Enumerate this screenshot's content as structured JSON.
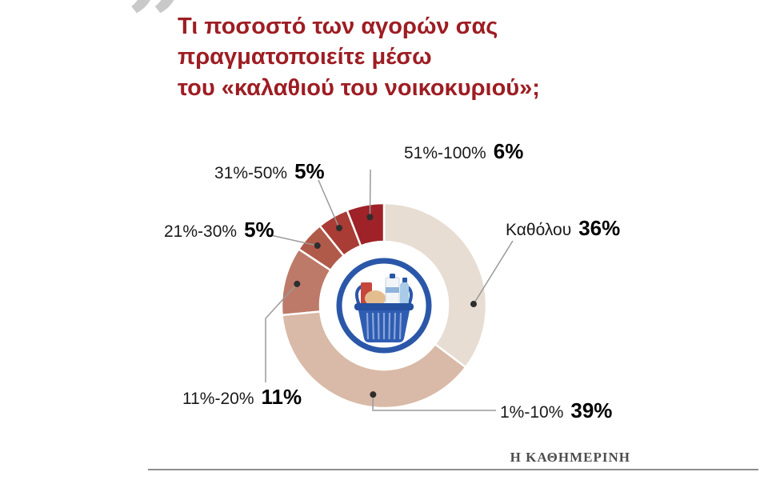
{
  "header": {
    "quote_glyph": "”",
    "title": "Τι ποσοστό των αγορών σας\nπραγματοποιείτε μέσω\nτου «καλαθιού του νοικοκυριού»;",
    "title_color": "#9d1d23"
  },
  "callouts": [
    {
      "id": "51-100",
      "range": "51%-100%",
      "value": "6%"
    },
    {
      "id": "31-50",
      "range": "31%-50%",
      "value": "5%"
    },
    {
      "id": "21-30",
      "range": "21%-30%",
      "value": "5%"
    },
    {
      "id": "none",
      "range": "Καθόλου",
      "value": "36%"
    },
    {
      "id": "11-20",
      "range": "11%-20%",
      "value": "11%"
    },
    {
      "id": "1-10",
      "range": "1%-10%",
      "value": "39%"
    }
  ],
  "chart_data": {
    "type": "pie",
    "subtype": "donut",
    "title": "Τι ποσοστό των αγορών σας πραγματοποιείτε μέσω του «καλαθιού του νοικοκυριού»;",
    "categories": [
      "Καθόλου",
      "1%-10%",
      "11%-20%",
      "21%-30%",
      "31%-50%",
      "51%-100%"
    ],
    "values": [
      36,
      39,
      11,
      5,
      5,
      6
    ],
    "unit": "%",
    "colors": [
      "#e7ddd3",
      "#d9b9a7",
      "#bd7a68",
      "#b05a4a",
      "#a93c34",
      "#9e2227"
    ],
    "start_angle_deg": 0,
    "direction": "clockwise",
    "legend": "callout-labels",
    "center_icon": "shopping-basket-icon",
    "accent_color": "#9d1d23",
    "basket_blue": "#2b57a8"
  },
  "footer": {
    "brand": "Η ΚΑΘΗΜΕΡΙΝΗ"
  }
}
